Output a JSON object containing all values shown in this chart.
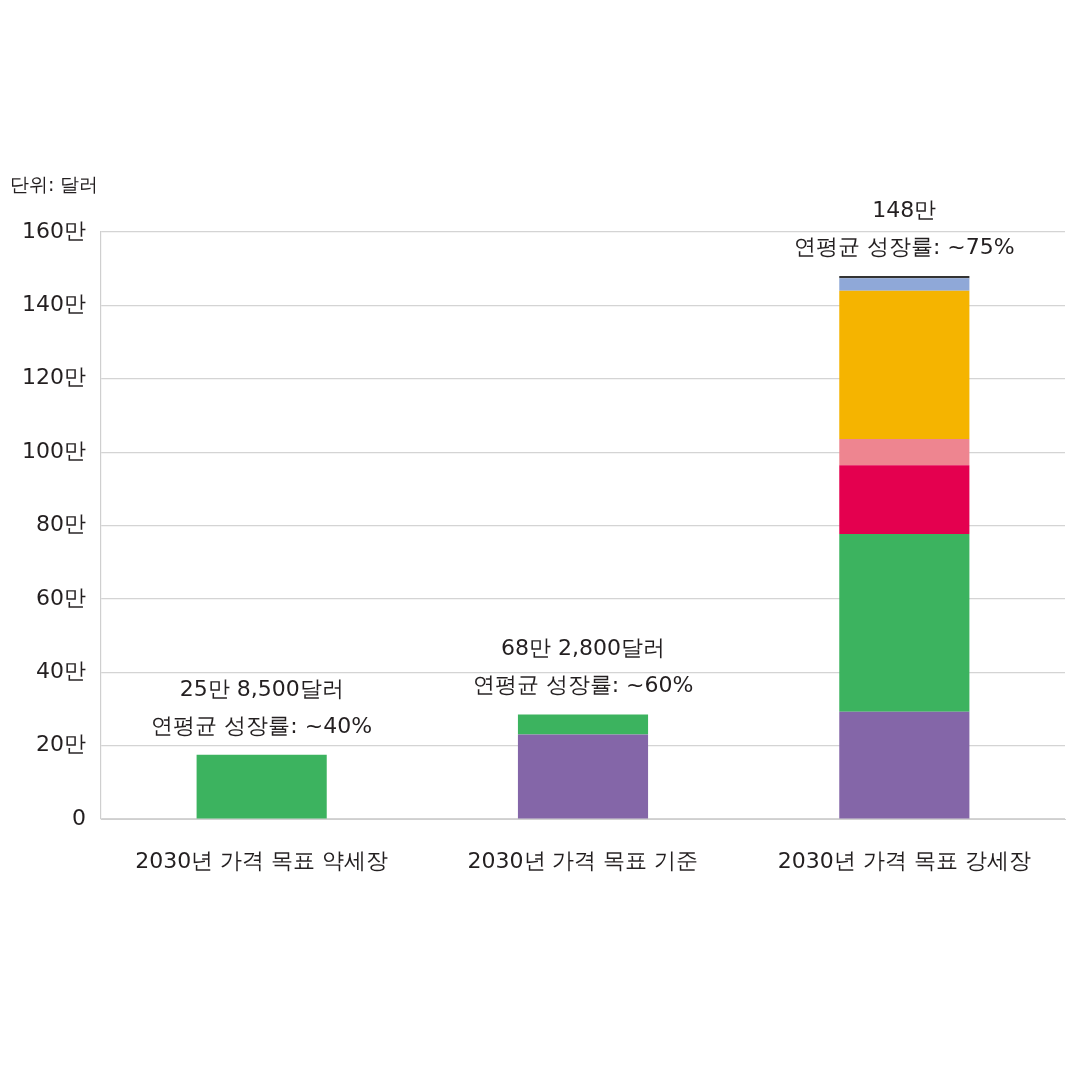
{
  "chart_data": {
    "type": "bar",
    "ylabel": "단위: 달러",
    "categories": [
      "2030년 가격 목표 약세장",
      "2030년 가격 목표 기준",
      "2030년 가격 목표 강세장"
    ],
    "series": [
      {
        "color": "#8466a8",
        "values": [
          null,
          23,
          29.2
        ]
      },
      {
        "color": "#3cb35f",
        "values": [
          17.5,
          5.5,
          48.5
        ]
      },
      {
        "color": "#e4004f",
        "values": [
          null,
          null,
          18.7
        ]
      },
      {
        "color": "#ee8590",
        "values": [
          null,
          null,
          7.2
        ]
      },
      {
        "color": "#f5b400",
        "values": [
          null,
          null,
          40.4
        ]
      },
      {
        "color": "#8fa8d8",
        "values": [
          null,
          null,
          3.4
        ]
      },
      {
        "color": "#333333",
        "values": [
          null,
          null,
          0.6
        ]
      }
    ],
    "stacked": true,
    "ylim": [
      0,
      160
    ],
    "yticks": [
      0,
      {
        "value": 20,
        "label": "20만"
      },
      {
        "value": 40,
        "label": "40만"
      },
      {
        "value": 60,
        "label": "60만"
      },
      {
        "value": 80,
        "label": "80만"
      },
      {
        "value": 100,
        "label": "100만"
      },
      {
        "value": 120,
        "label": "120만"
      },
      {
        "value": 140,
        "label": "140만"
      },
      {
        "value": 160,
        "label": "160만"
      }
    ],
    "grid": "y",
    "annotations": [
      {
        "text": "25만 8,500달러\n연평균 성장률: ~40%",
        "x": "2030년 가격 목표 약세장",
        "y": 17.5
      },
      {
        "text": "68만 2,800달러\n연평균 성장률: ~60%",
        "x": "2030년 가격 목표 기준",
        "y": 28.5
      },
      {
        "text": "148만\n연평균 성장률: ~75%",
        "x": "2030년 가격 목표 강세장",
        "y": 148
      }
    ]
  }
}
